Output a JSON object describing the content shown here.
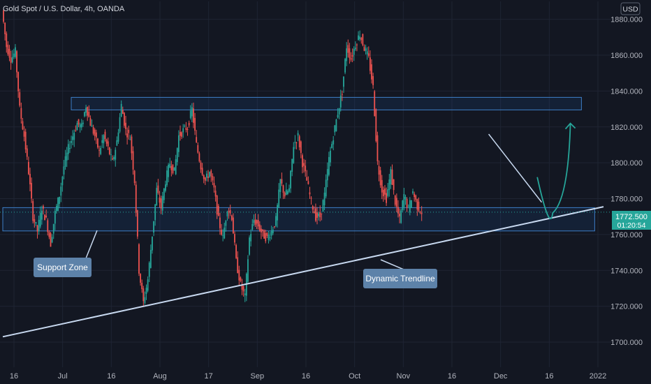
{
  "header": {
    "symbol": "Gold Spot / U.S. Dollar, 4h, OANDA",
    "currency": "USD"
  },
  "price_label": {
    "price": "1772.500",
    "countdown": "01:20:54"
  },
  "annotations": {
    "support": "Support Zone",
    "trendline": "Dynamic Trendline"
  },
  "colors": {
    "background": "#131722",
    "grid": "#1f2433",
    "up": "#26a69a",
    "down": "#ef5350",
    "zone_border": "#3d7ec7",
    "trendline": "#c8d9f0",
    "arrow": "#26a69a",
    "callout": "#5d82a9"
  },
  "chart_data": {
    "type": "candlestick",
    "title": "Gold Spot / U.S. Dollar, 4h, OANDA",
    "x_ticks": [
      "16",
      "Jul",
      "16",
      "Aug",
      "17",
      "Sep",
      "16",
      "Oct",
      "Nov",
      "16",
      "Dec",
      "16",
      "2022"
    ],
    "y_ticks": [
      1700,
      1720,
      1740,
      1760,
      1780,
      1800,
      1820,
      1840,
      1860,
      1880
    ],
    "ylim": [
      1686,
      1890
    ],
    "y_unit": "USD",
    "grid": true,
    "last_price": 1772.5,
    "price_path": [
      [
        0,
        1885
      ],
      [
        1,
        1865
      ],
      [
        2,
        1858
      ],
      [
        3,
        1862
      ],
      [
        4,
        1830
      ],
      [
        5,
        1815
      ],
      [
        6,
        1795
      ],
      [
        7,
        1770
      ],
      [
        8,
        1762
      ],
      [
        9,
        1775
      ],
      [
        10,
        1768
      ],
      [
        11,
        1755
      ],
      [
        12,
        1772
      ],
      [
        13,
        1782
      ],
      [
        14,
        1798
      ],
      [
        15,
        1808
      ],
      [
        16,
        1815
      ],
      [
        17,
        1822
      ],
      [
        18,
        1820
      ],
      [
        19,
        1832
      ],
      [
        20,
        1822
      ],
      [
        21,
        1815
      ],
      [
        22,
        1806
      ],
      [
        23,
        1815
      ],
      [
        24,
        1808
      ],
      [
        25,
        1800
      ],
      [
        26,
        1812
      ],
      [
        27,
        1832
      ],
      [
        28,
        1818
      ],
      [
        29,
        1814
      ],
      [
        30,
        1790
      ],
      [
        31,
        1740
      ],
      [
        32,
        1722
      ],
      [
        33,
        1735
      ],
      [
        34,
        1760
      ],
      [
        35,
        1785
      ],
      [
        36,
        1775
      ],
      [
        37,
        1790
      ],
      [
        38,
        1800
      ],
      [
        39,
        1795
      ],
      [
        40,
        1815
      ],
      [
        41,
        1818
      ],
      [
        42,
        1820
      ],
      [
        43,
        1830
      ],
      [
        44,
        1810
      ],
      [
        45,
        1798
      ],
      [
        46,
        1790
      ],
      [
        47,
        1795
      ],
      [
        48,
        1785
      ],
      [
        49,
        1768
      ],
      [
        50,
        1758
      ],
      [
        51,
        1775
      ],
      [
        52,
        1770
      ],
      [
        53,
        1745
      ],
      [
        54,
        1732
      ],
      [
        55,
        1725
      ],
      [
        56,
        1758
      ],
      [
        57,
        1768
      ],
      [
        58,
        1765
      ],
      [
        59,
        1760
      ],
      [
        60,
        1758
      ],
      [
        61,
        1762
      ],
      [
        62,
        1768
      ],
      [
        63,
        1790
      ],
      [
        64,
        1782
      ],
      [
        65,
        1785
      ],
      [
        66,
        1810
      ],
      [
        67,
        1815
      ],
      [
        68,
        1800
      ],
      [
        69,
        1790
      ],
      [
        70,
        1778
      ],
      [
        71,
        1770
      ],
      [
        72,
        1770
      ],
      [
        73,
        1782
      ],
      [
        74,
        1802
      ],
      [
        75,
        1815
      ],
      [
        76,
        1828
      ],
      [
        77,
        1840
      ],
      [
        78,
        1865
      ],
      [
        79,
        1858
      ],
      [
        80,
        1866
      ],
      [
        81,
        1872
      ],
      [
        82,
        1864
      ],
      [
        83,
        1858
      ],
      [
        84,
        1842
      ],
      [
        85,
        1800
      ],
      [
        86,
        1785
      ],
      [
        87,
        1780
      ],
      [
        88,
        1795
      ],
      [
        89,
        1778
      ],
      [
        90,
        1768
      ],
      [
        91,
        1782
      ],
      [
        92,
        1774
      ],
      [
        93,
        1784
      ],
      [
        94,
        1776
      ],
      [
        95,
        1772.5
      ]
    ],
    "x_end": 95,
    "x_max": 136,
    "zones": [
      {
        "x0": 15.5,
        "x1": 131,
        "y0": 1829.5,
        "y1": 1836.5
      },
      {
        "x0": 0,
        "x1": 134,
        "y0": 1762,
        "y1": 1775
      }
    ],
    "trendline": {
      "x0": 0,
      "y0": 1703,
      "x1": 136,
      "y1": 1775.5
    },
    "down_line": {
      "x0": 110,
      "y0": 1816,
      "x1": 122,
      "y1": 1778
    },
    "projection": [
      [
        121,
        1792
      ],
      [
        124.5,
        1772
      ],
      [
        128.5,
        1822
      ]
    ]
  }
}
